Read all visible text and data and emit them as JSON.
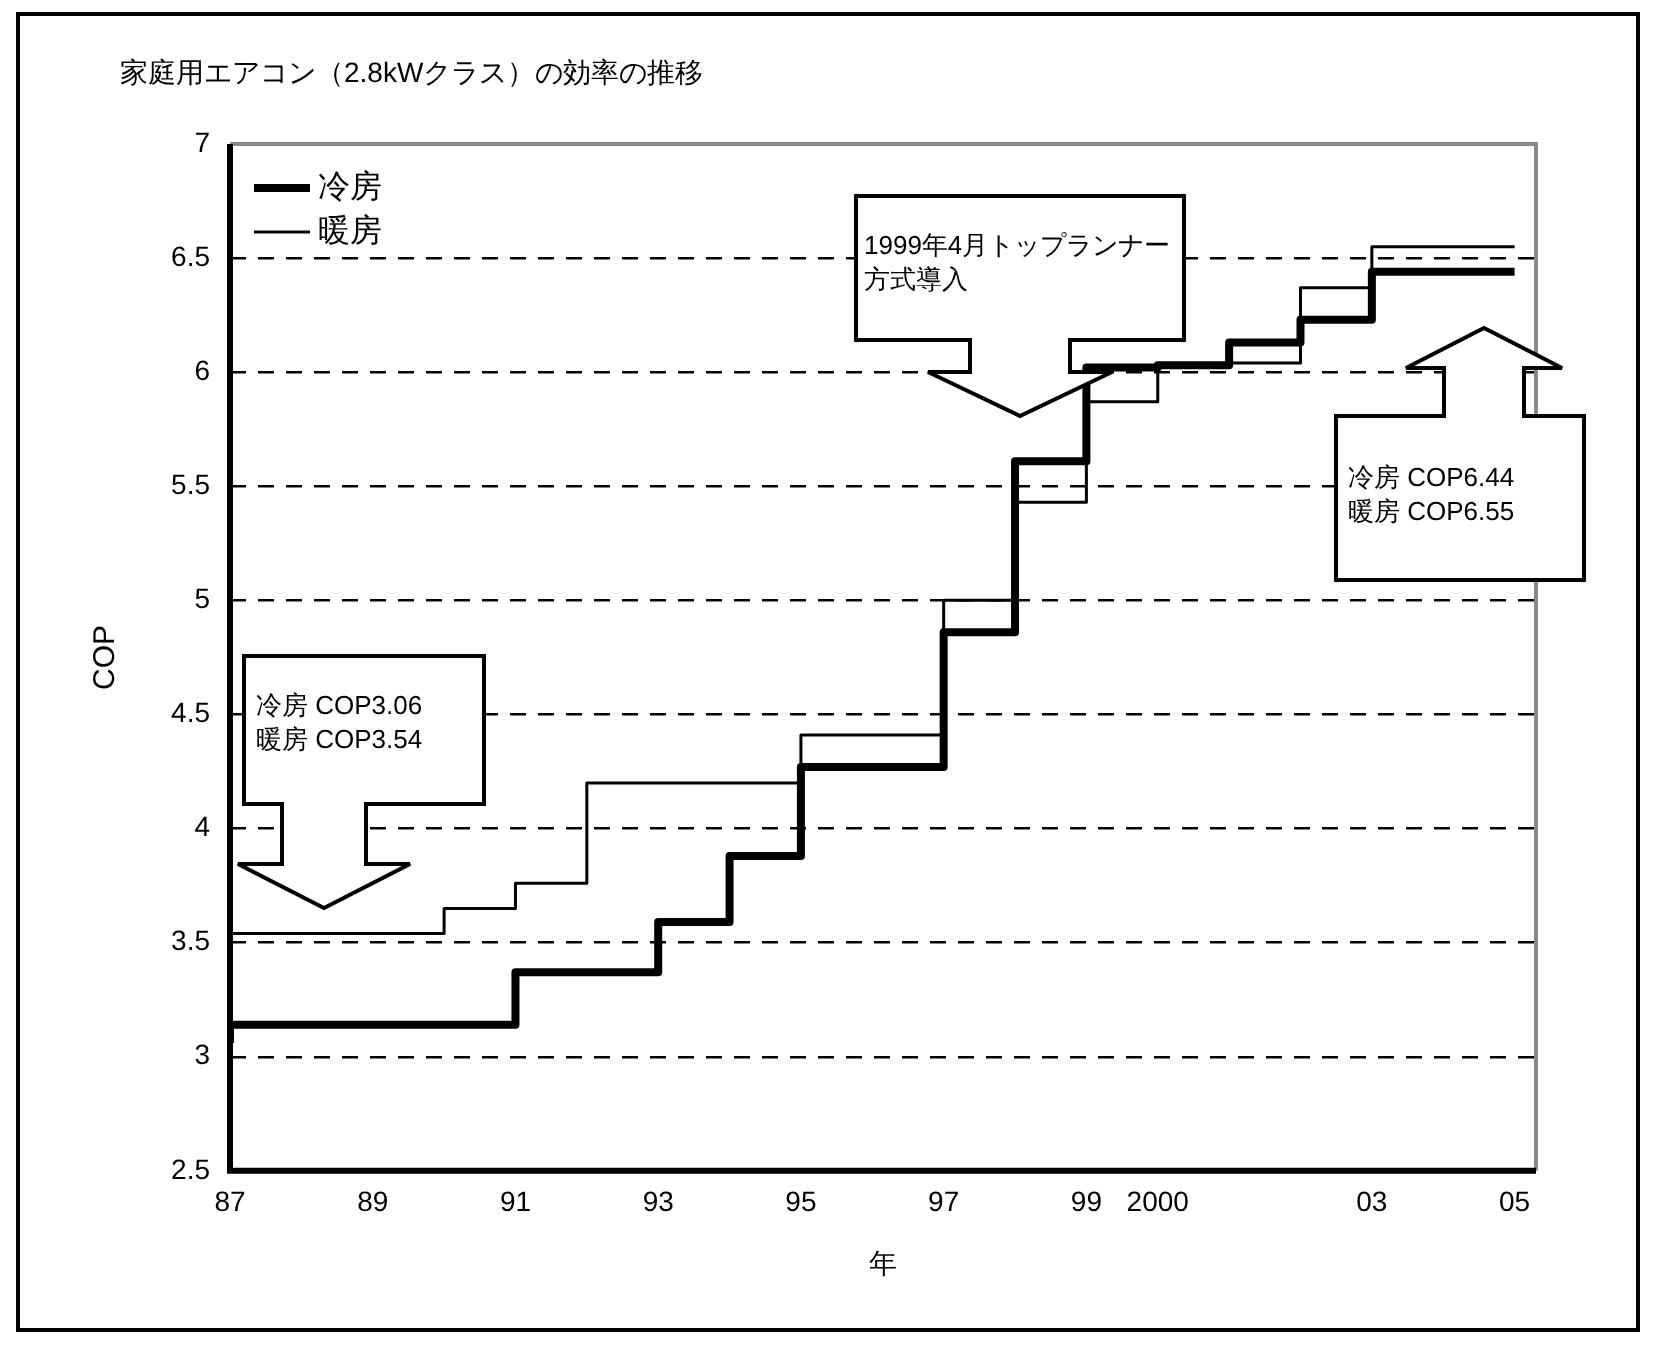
{
  "chart_data": {
    "type": "step",
    "title": "家庭用エアコン（2.8kWクラス）の効率の推移",
    "xlabel": "年",
    "ylabel": "COP",
    "x": [
      1987,
      1988,
      1989,
      1990,
      1991,
      1992,
      1993,
      1994,
      1995,
      1996,
      1997,
      1998,
      1999,
      2000,
      2001,
      2002,
      2003,
      2004,
      2005
    ],
    "series": [
      {
        "name": "冷房",
        "color": "#000000",
        "values": [
          3.06,
          3.14,
          3.14,
          3.14,
          3.14,
          3.37,
          3.37,
          3.59,
          3.88,
          4.27,
          4.27,
          4.86,
          5.61,
          6.02,
          6.03,
          6.13,
          6.23,
          6.44,
          6.44
        ]
      },
      {
        "name": "暖房",
        "color": "#000000",
        "values": [
          3.54,
          3.54,
          3.54,
          3.54,
          3.65,
          3.76,
          4.2,
          4.2,
          4.2,
          4.41,
          4.41,
          5.0,
          5.43,
          5.87,
          6.03,
          6.04,
          6.37,
          6.55,
          6.55
        ]
      }
    ],
    "xlim": [
      1987,
      2005.3
    ],
    "xticks": [
      {
        "value": 1987,
        "label": "87"
      },
      {
        "value": 1989,
        "label": "89"
      },
      {
        "value": 1991,
        "label": "91"
      },
      {
        "value": 1993,
        "label": "93"
      },
      {
        "value": 1995,
        "label": "95"
      },
      {
        "value": 1997,
        "label": "97"
      },
      {
        "value": 1999,
        "label": "99"
      },
      {
        "value": 2000,
        "label": "2000"
      },
      {
        "value": 2003,
        "label": "03"
      },
      {
        "value": 2005,
        "label": "05"
      }
    ],
    "ylim": [
      2.5,
      7
    ],
    "yticks": [
      2.5,
      3,
      3.5,
      4,
      4.5,
      5,
      5.5,
      6,
      6.5,
      7
    ],
    "grid": "y",
    "legend": "top left",
    "line_style": "solid",
    "marker": "none",
    "annotations": [
      "冷房 COP3.06\n暖房 COP3.54",
      "1999年4月トップランナー方式導入",
      "冷房 COP6.44\n暖房 COP6.55"
    ]
  }
}
